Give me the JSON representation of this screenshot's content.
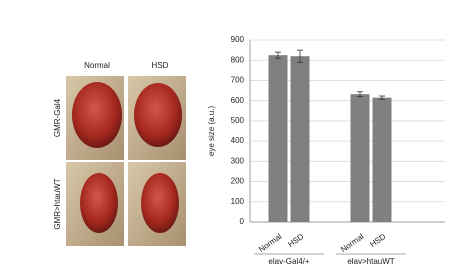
{
  "panel": {
    "column_labels": [
      "Normal",
      "HSD"
    ],
    "row_labels": [
      "GMR-Gal4",
      "GMR>htauWT"
    ]
  },
  "chart_data": {
    "type": "bar",
    "ylabel": "eye size (a.u.)",
    "categories": [
      "Normal",
      "HSD",
      "Normal",
      "HSD"
    ],
    "groups": [
      "elav-Gal4/+",
      "elav>htauWT"
    ],
    "values": [
      825,
      820,
      632,
      615
    ],
    "errors": [
      15,
      30,
      12,
      8
    ],
    "color": "#808080",
    "ylim": [
      0,
      900
    ],
    "yticks": [
      0,
      100,
      200,
      300,
      400,
      500,
      600,
      700,
      800,
      900
    ],
    "grid": true
  }
}
